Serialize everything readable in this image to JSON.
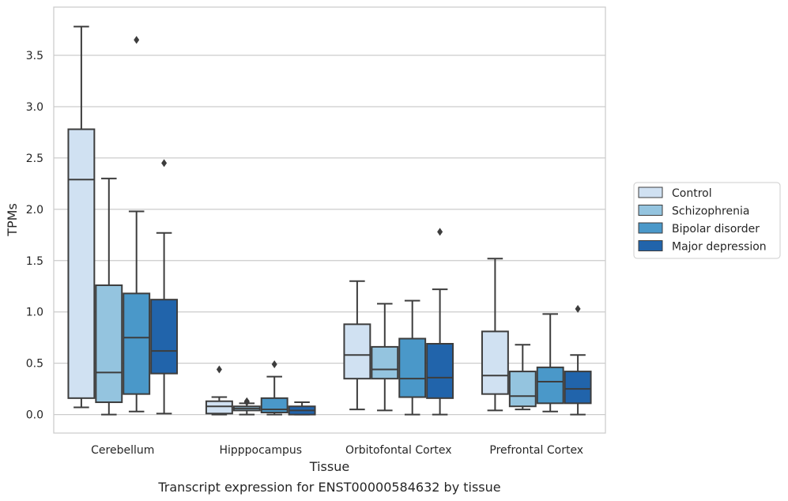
{
  "chart_data": {
    "type": "box",
    "xlabel": "Tissue",
    "ylabel": "TPMs",
    "caption": "Transcript expression for ENST00000584632 by tissue",
    "ylim": [
      -0.18,
      3.97
    ],
    "yticks": [
      "0.0",
      "0.5",
      "1.0",
      "1.5",
      "2.0",
      "2.5",
      "3.0",
      "3.5"
    ],
    "grid": "horizontal",
    "legend_position": "right",
    "categories": [
      "Cerebellum",
      "Hipppocampus",
      "Orbitofontal Cortex",
      "Prefrontal Cortex"
    ],
    "series": [
      {
        "name": "Control",
        "color": "#d0e1f2",
        "boxes": [
          {
            "whislo": 0.07,
            "q1": 0.16,
            "med": 2.29,
            "q3": 2.78,
            "whishi": 3.78,
            "fliers": []
          },
          {
            "whislo": 0.0,
            "q1": 0.01,
            "med": 0.08,
            "q3": 0.13,
            "whishi": 0.17,
            "fliers": [
              0.44
            ]
          },
          {
            "whislo": 0.05,
            "q1": 0.35,
            "med": 0.58,
            "q3": 0.88,
            "whishi": 1.3,
            "fliers": []
          },
          {
            "whislo": 0.04,
            "q1": 0.2,
            "med": 0.38,
            "q3": 0.81,
            "whishi": 1.52,
            "fliers": []
          }
        ]
      },
      {
        "name": "Schizophrenia",
        "color": "#94c4df",
        "boxes": [
          {
            "whislo": 0.0,
            "q1": 0.12,
            "med": 0.41,
            "q3": 1.26,
            "whishi": 2.3,
            "fliers": []
          },
          {
            "whislo": 0.0,
            "q1": 0.04,
            "med": 0.06,
            "q3": 0.08,
            "whishi": 0.11,
            "fliers": [
              0.13,
              0.12
            ]
          },
          {
            "whislo": 0.04,
            "q1": 0.35,
            "med": 0.44,
            "q3": 0.66,
            "whishi": 1.08,
            "fliers": []
          },
          {
            "whislo": 0.05,
            "q1": 0.08,
            "med": 0.18,
            "q3": 0.42,
            "whishi": 0.68,
            "fliers": []
          }
        ]
      },
      {
        "name": "Bipolar disorder",
        "color": "#4a98c9",
        "boxes": [
          {
            "whislo": 0.03,
            "q1": 0.2,
            "med": 0.75,
            "q3": 1.18,
            "whishi": 1.98,
            "fliers": [
              3.65
            ]
          },
          {
            "whislo": 0.0,
            "q1": 0.02,
            "med": 0.05,
            "q3": 0.16,
            "whishi": 0.37,
            "fliers": [
              0.49
            ]
          },
          {
            "whislo": 0.0,
            "q1": 0.17,
            "med": 0.35,
            "q3": 0.74,
            "whishi": 1.11,
            "fliers": []
          },
          {
            "whislo": 0.03,
            "q1": 0.11,
            "med": 0.32,
            "q3": 0.46,
            "whishi": 0.98,
            "fliers": []
          }
        ]
      },
      {
        "name": "Major depression",
        "color": "#2164ab",
        "boxes": [
          {
            "whislo": 0.01,
            "q1": 0.4,
            "med": 0.62,
            "q3": 1.12,
            "whishi": 1.77,
            "fliers": [
              2.45
            ]
          },
          {
            "whislo": 0.0,
            "q1": 0.0,
            "med": 0.04,
            "q3": 0.08,
            "whishi": 0.12,
            "fliers": []
          },
          {
            "whislo": 0.0,
            "q1": 0.16,
            "med": 0.36,
            "q3": 0.69,
            "whishi": 1.22,
            "fliers": [
              1.78
            ]
          },
          {
            "whislo": 0.0,
            "q1": 0.11,
            "med": 0.25,
            "q3": 0.42,
            "whishi": 0.58,
            "fliers": [
              1.03
            ]
          }
        ]
      }
    ]
  }
}
